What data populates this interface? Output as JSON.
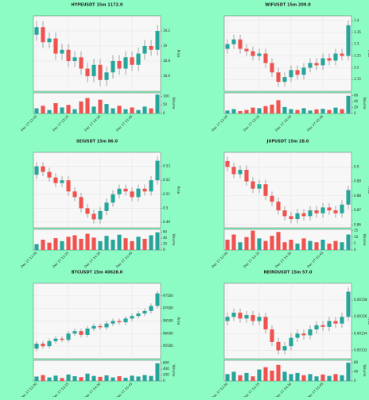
{
  "chart_data": [
    {
      "type": "candlestick",
      "title": "HYPEUSDT 15m 1172.0",
      "ylabel": "Price",
      "vlabel": "Volume",
      "up_color": "#26a69a",
      "down_color": "#ef5350",
      "grid": true,
      "x": [
        "Dec 17 12:00",
        null,
        null,
        null,
        null,
        "Dec 17 13:15",
        null,
        null,
        null,
        null,
        "Dec 17 14:30",
        null,
        null,
        null,
        null,
        "Dec 17 15:45",
        null,
        null,
        null,
        null
      ],
      "open": [
        19.15,
        19.25,
        19.05,
        19.1,
        18.9,
        18.95,
        18.8,
        18.85,
        18.7,
        18.6,
        18.75,
        18.55,
        18.65,
        18.8,
        18.7,
        18.85,
        18.75,
        18.9,
        19.0,
        18.95
      ],
      "high": [
        19.33,
        19.33,
        19.18,
        19.18,
        19.03,
        19.03,
        18.93,
        18.93,
        18.78,
        18.83,
        18.83,
        18.73,
        18.88,
        18.88,
        18.93,
        18.93,
        18.98,
        19.08,
        19.08,
        19.28
      ],
      "low": [
        19.07,
        18.97,
        18.97,
        18.82,
        18.82,
        18.72,
        18.72,
        18.62,
        18.52,
        18.52,
        18.47,
        18.47,
        18.57,
        18.62,
        18.62,
        18.67,
        18.67,
        18.82,
        18.87,
        18.87
      ],
      "close": [
        19.25,
        19.05,
        19.1,
        18.9,
        18.95,
        18.8,
        18.85,
        18.7,
        18.6,
        18.75,
        18.55,
        18.65,
        18.8,
        18.7,
        18.85,
        18.75,
        18.9,
        19.0,
        18.95,
        19.2
      ],
      "volume": [
        30,
        45,
        20,
        60,
        35,
        50,
        25,
        70,
        90,
        40,
        80,
        55,
        30,
        45,
        25,
        35,
        20,
        40,
        30,
        110
      ],
      "ylim": [
        18.4,
        19.4
      ],
      "yticks": [
        18.6,
        18.8,
        19.0,
        19.2
      ],
      "vlim": [
        0,
        120
      ],
      "vticks": [
        0,
        50,
        100
      ]
    },
    {
      "type": "candlestick",
      "title": "WIFUSDT 15m 209.0",
      "ylabel": "Price",
      "vlabel": "Volume",
      "up_color": "#26a69a",
      "down_color": "#ef5350",
      "grid": true,
      "x": [
        "Dec 17 12:00",
        null,
        null,
        null,
        null,
        "Dec 17 13:15",
        null,
        null,
        null,
        null,
        "Dec 17 14:30",
        null,
        null,
        null,
        null,
        "Dec 17 15:45",
        null,
        null,
        null,
        null
      ],
      "open": [
        3.28,
        3.3,
        3.32,
        3.28,
        3.27,
        3.25,
        3.26,
        3.22,
        3.18,
        3.14,
        3.16,
        3.19,
        3.17,
        3.2,
        3.22,
        3.21,
        3.24,
        3.23,
        3.26,
        3.25
      ],
      "high": [
        3.32,
        3.34,
        3.34,
        3.3,
        3.29,
        3.28,
        3.28,
        3.24,
        3.2,
        3.18,
        3.21,
        3.21,
        3.22,
        3.24,
        3.24,
        3.26,
        3.26,
        3.28,
        3.28,
        3.4
      ],
      "low": [
        3.26,
        3.28,
        3.26,
        3.25,
        3.23,
        3.23,
        3.2,
        3.16,
        3.12,
        3.12,
        3.14,
        3.15,
        3.15,
        3.18,
        3.19,
        3.19,
        3.21,
        3.21,
        3.23,
        3.23
      ],
      "close": [
        3.3,
        3.32,
        3.28,
        3.27,
        3.25,
        3.26,
        3.22,
        3.18,
        3.14,
        3.16,
        3.19,
        3.17,
        3.2,
        3.22,
        3.21,
        3.24,
        3.23,
        3.26,
        3.25,
        3.38
      ],
      "volume": [
        10,
        15,
        8,
        12,
        20,
        18,
        25,
        30,
        45,
        22,
        15,
        12,
        18,
        10,
        14,
        16,
        12,
        20,
        15,
        60
      ],
      "ylim": [
        3.1,
        3.42
      ],
      "yticks": [
        3.15,
        3.2,
        3.25,
        3.3,
        3.35,
        3.4
      ],
      "vlim": [
        0,
        70
      ],
      "vticks": [
        0,
        20,
        40,
        60
      ]
    },
    {
      "type": "candlestick",
      "title": "SEIUSDT 15m 86.0",
      "ylabel": "Price",
      "vlabel": "Volume",
      "up_color": "#26a69a",
      "down_color": "#ef5350",
      "grid": true,
      "x": [
        "Dec 17 12:00",
        null,
        null,
        null,
        null,
        "Dec 17 13:15",
        null,
        null,
        null,
        null,
        "Dec 17 14:30",
        null,
        null,
        null,
        null,
        "Dec 17 15:45",
        null,
        null,
        null,
        null
      ],
      "open": [
        0.524,
        0.53,
        0.526,
        0.522,
        0.518,
        0.52,
        0.512,
        0.508,
        0.5,
        0.496,
        0.492,
        0.498,
        0.504,
        0.51,
        0.514,
        0.512,
        0.508,
        0.514,
        0.512,
        0.52
      ],
      "high": [
        0.533,
        0.533,
        0.529,
        0.525,
        0.523,
        0.523,
        0.515,
        0.511,
        0.503,
        0.499,
        0.501,
        0.507,
        0.513,
        0.517,
        0.517,
        0.515,
        0.517,
        0.517,
        0.523,
        0.537
      ],
      "low": [
        0.521,
        0.523,
        0.519,
        0.515,
        0.515,
        0.509,
        0.505,
        0.497,
        0.493,
        0.489,
        0.489,
        0.495,
        0.501,
        0.507,
        0.509,
        0.505,
        0.505,
        0.509,
        0.509,
        0.517
      ],
      "close": [
        0.53,
        0.526,
        0.522,
        0.518,
        0.52,
        0.512,
        0.508,
        0.5,
        0.496,
        0.492,
        0.498,
        0.504,
        0.51,
        0.514,
        0.512,
        0.508,
        0.514,
        0.512,
        0.52,
        0.534
      ],
      "volume": [
        20,
        35,
        25,
        40,
        30,
        45,
        50,
        38,
        55,
        42,
        30,
        48,
        35,
        52,
        40,
        30,
        45,
        38,
        50,
        60
      ],
      "ylim": [
        0.486,
        0.54
      ],
      "yticks": [
        0.49,
        0.5,
        0.51,
        0.52,
        0.53
      ],
      "vlim": [
        0,
        70
      ],
      "vticks": [
        0,
        20,
        40,
        60
      ]
    },
    {
      "type": "candlestick",
      "title": "JUPUSDT 15m 28.0",
      "ylabel": "Price",
      "vlabel": "Volume",
      "up_color": "#26a69a",
      "down_color": "#ef5350",
      "grid": true,
      "x": [
        "Dec 17 12:00",
        null,
        null,
        null,
        null,
        "Dec 17 13:15",
        null,
        null,
        null,
        null,
        "Dec 17 14:30",
        null,
        null,
        null,
        null,
        "Dec 17 15:45",
        null,
        null,
        null,
        null
      ],
      "open": [
        0.904,
        0.9,
        0.895,
        0.898,
        0.89,
        0.885,
        0.888,
        0.88,
        0.876,
        0.87,
        0.866,
        0.864,
        0.868,
        0.866,
        0.87,
        0.868,
        0.872,
        0.87,
        0.868,
        0.874
      ],
      "high": [
        0.907,
        0.903,
        0.901,
        0.901,
        0.893,
        0.891,
        0.891,
        0.883,
        0.879,
        0.873,
        0.869,
        0.871,
        0.871,
        0.873,
        0.873,
        0.875,
        0.875,
        0.873,
        0.877,
        0.887
      ],
      "low": [
        0.897,
        0.892,
        0.892,
        0.887,
        0.882,
        0.882,
        0.877,
        0.873,
        0.867,
        0.863,
        0.861,
        0.861,
        0.863,
        0.863,
        0.865,
        0.865,
        0.867,
        0.865,
        0.865,
        0.871
      ],
      "close": [
        0.9,
        0.895,
        0.898,
        0.89,
        0.885,
        0.888,
        0.88,
        0.876,
        0.87,
        0.866,
        0.864,
        0.868,
        0.866,
        0.87,
        0.868,
        0.872,
        0.87,
        0.868,
        0.874,
        0.884
      ],
      "volume": [
        8,
        12,
        6,
        10,
        15,
        9,
        7,
        11,
        14,
        6,
        8,
        5,
        9,
        7,
        6,
        8,
        5,
        7,
        6,
        12
      ],
      "ylim": [
        0.858,
        0.91
      ],
      "yticks": [
        0.86,
        0.87,
        0.88,
        0.89,
        0.9
      ],
      "vlim": [
        0,
        16
      ],
      "vticks": [
        0,
        5,
        10,
        15
      ]
    },
    {
      "type": "candlestick",
      "title": "BTCUSDT 15m 40628.0",
      "ylabel": "Price",
      "vlabel": "Volume",
      "up_color": "#26a69a",
      "down_color": "#ef5350",
      "grid": true,
      "x": [
        "Dec 17 12:00",
        null,
        null,
        null,
        null,
        "Dec 17 13:15",
        null,
        null,
        null,
        null,
        "Dec 17 14:30",
        null,
        null,
        null,
        null,
        "Dec 17 15:45",
        null,
        null,
        null,
        null
      ],
      "open": [
        95400,
        95600,
        95500,
        95700,
        95800,
        95750,
        96000,
        96100,
        95950,
        96200,
        96300,
        96250,
        96400,
        96500,
        96450,
        96600,
        96700,
        96800,
        96900,
        97100
      ],
      "high": [
        95700,
        95700,
        95800,
        95900,
        95900,
        96100,
        96200,
        96200,
        96300,
        96400,
        96400,
        96500,
        96600,
        96600,
        96700,
        96800,
        96900,
        97000,
        97200,
        97700
      ],
      "low": [
        95300,
        95400,
        95400,
        95600,
        95650,
        95650,
        95900,
        95850,
        95850,
        96100,
        96150,
        96150,
        96300,
        96350,
        96350,
        96500,
        96600,
        96700,
        96800,
        97000
      ],
      "close": [
        95600,
        95500,
        95700,
        95800,
        95750,
        96000,
        96100,
        95950,
        96200,
        96300,
        96250,
        96400,
        96500,
        96450,
        96600,
        96700,
        96800,
        96900,
        97100,
        97600
      ],
      "volume": [
        150,
        200,
        120,
        180,
        100,
        220,
        160,
        130,
        250,
        170,
        140,
        190,
        120,
        160,
        110,
        180,
        150,
        200,
        170,
        600
      ],
      "ylim": [
        95000,
        98000
      ],
      "yticks": [
        95500,
        96000,
        96500,
        97000,
        97500
      ],
      "vlim": [
        0,
        700
      ],
      "vticks": [
        0,
        200,
        400,
        600
      ]
    },
    {
      "type": "candlestick",
      "title": "NEIROUSDT 15m 57.0",
      "ylabel": "Price",
      "vlabel": "Volume",
      "up_color": "#26a69a",
      "down_color": "#ef5350",
      "grid": true,
      "x": [
        "Dec 17 12:00",
        null,
        null,
        null,
        null,
        "Dec 17 13:15",
        null,
        null,
        null,
        null,
        "Dec 17 14:30",
        null,
        null,
        null,
        null,
        "Dec 17 15:45",
        null,
        null,
        null,
        null
      ],
      "open": [
        0.001555,
        0.00156,
        0.001565,
        0.001558,
        0.001562,
        0.001555,
        0.00156,
        0.001545,
        0.00153,
        0.00152,
        0.001525,
        0.001535,
        0.00154,
        0.001538,
        0.001545,
        0.00155,
        0.001548,
        0.001555,
        0.001552,
        0.00156
      ],
      "high": [
        0.001565,
        0.00157,
        0.00157,
        0.001567,
        0.001567,
        0.001565,
        0.001565,
        0.00155,
        0.001535,
        0.00153,
        0.00154,
        0.001545,
        0.001545,
        0.00155,
        0.001555,
        0.001555,
        0.00156,
        0.00156,
        0.001565,
        0.001595
      ],
      "low": [
        0.00155,
        0.001555,
        0.001553,
        0.001553,
        0.00155,
        0.00155,
        0.00154,
        0.001525,
        0.001515,
        0.001515,
        0.00152,
        0.00153,
        0.001533,
        0.001533,
        0.00154,
        0.001543,
        0.001543,
        0.001547,
        0.001547,
        0.001555
      ],
      "close": [
        0.00156,
        0.001565,
        0.001558,
        0.001562,
        0.001555,
        0.00156,
        0.001545,
        0.00153,
        0.00152,
        0.001525,
        0.001535,
        0.00154,
        0.001538,
        0.001545,
        0.00155,
        0.001548,
        0.001555,
        0.001552,
        0.00156,
        0.00159
      ],
      "volume": [
        30,
        40,
        25,
        35,
        20,
        50,
        60,
        45,
        70,
        40,
        30,
        35,
        25,
        30,
        20,
        28,
        22,
        30,
        25,
        80
      ],
      "ylim": [
        0.00151,
        0.0016
      ],
      "yticks": [
        0.00152,
        0.00154,
        0.00156,
        0.00158
      ],
      "vlim": [
        0,
        90
      ],
      "vticks": [
        0,
        40,
        80
      ]
    }
  ]
}
